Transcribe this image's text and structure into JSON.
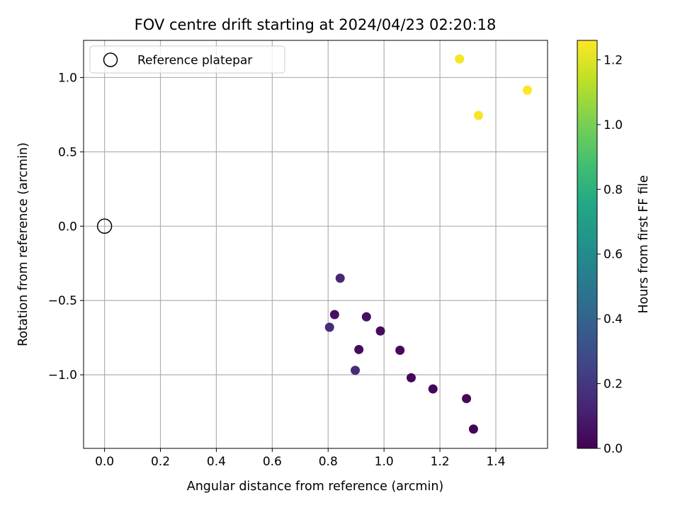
{
  "chart_data": {
    "type": "scatter",
    "title": "FOV centre drift starting at 2024/04/23 02:20:18",
    "xlabel": "Angular distance from reference (arcmin)",
    "ylabel": "Rotation from reference (arcmin)",
    "xlim": [
      -0.075,
      1.585
    ],
    "ylim": [
      -1.495,
      1.25
    ],
    "xticks": [
      0.0,
      0.2,
      0.4,
      0.6,
      0.8,
      1.0,
      1.2,
      1.4
    ],
    "xtick_labels": [
      "0.0",
      "0.2",
      "0.4",
      "0.6",
      "0.8",
      "1.0",
      "1.2",
      "1.4"
    ],
    "yticks": [
      -1.0,
      -0.5,
      0.0,
      0.5,
      1.0
    ],
    "ytick_labels": [
      "−1.0",
      "−0.5",
      "0.0",
      "0.5",
      "1.0"
    ],
    "grid": true,
    "legend": {
      "position": "top-left",
      "entries": [
        "Reference platepar"
      ]
    },
    "reference_point": {
      "name": "Reference platepar",
      "x": 0.0,
      "y": 0.0
    },
    "colorbar": {
      "label": "Hours from first FF file",
      "colormap": "viridis",
      "range": [
        0.0,
        1.26
      ],
      "ticks": [
        0.0,
        0.2,
        0.4,
        0.6,
        0.8,
        1.0,
        1.2
      ],
      "tick_labels": [
        "0.0",
        "0.2",
        "0.4",
        "0.6",
        "0.8",
        "1.0",
        "1.2"
      ]
    },
    "points": [
      {
        "x": 0.843,
        "y": -0.35,
        "hours": 0.14
      },
      {
        "x": 0.823,
        "y": -0.595,
        "hours": 0.05
      },
      {
        "x": 0.805,
        "y": -0.68,
        "hours": 0.16
      },
      {
        "x": 0.937,
        "y": -0.61,
        "hours": 0.05
      },
      {
        "x": 0.987,
        "y": -0.705,
        "hours": 0.04
      },
      {
        "x": 0.91,
        "y": -0.83,
        "hours": 0.04
      },
      {
        "x": 1.057,
        "y": -0.835,
        "hours": 0.03
      },
      {
        "x": 0.897,
        "y": -0.97,
        "hours": 0.15
      },
      {
        "x": 1.097,
        "y": -1.02,
        "hours": 0.02
      },
      {
        "x": 1.175,
        "y": -1.095,
        "hours": 0.02
      },
      {
        "x": 1.295,
        "y": -1.16,
        "hours": 0.02
      },
      {
        "x": 1.32,
        "y": -1.365,
        "hours": 0.01
      },
      {
        "x": 1.27,
        "y": 1.125,
        "hours": 1.24
      },
      {
        "x": 1.338,
        "y": 0.745,
        "hours": 1.25
      },
      {
        "x": 1.513,
        "y": 0.915,
        "hours": 1.26
      }
    ]
  }
}
